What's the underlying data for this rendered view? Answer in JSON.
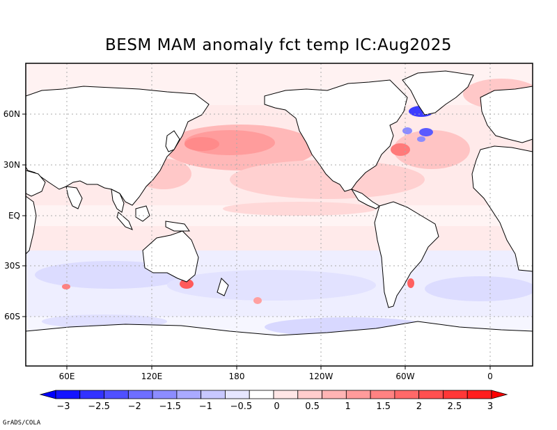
{
  "title": "BESM  MAM anomaly fct temp IC:Aug2025",
  "x_ticks": [
    "60E",
    "120E",
    "180",
    "120W",
    "60W",
    "0"
  ],
  "y_ticks": [
    "60N",
    "30N",
    "EQ",
    "30S",
    "60S"
  ],
  "colorbar": {
    "labels": [
      "−3",
      "−2.5",
      "−2",
      "−1.5",
      "−1",
      "−0.5",
      "0",
      "0.5",
      "1",
      "1.5",
      "2",
      "2.5",
      "3"
    ],
    "colors": [
      "#1414ff",
      "#3232ff",
      "#5050ff",
      "#6e6eff",
      "#8c8cff",
      "#aaaaff",
      "#c8c8ff",
      "#e6e6ff",
      "#ffffff",
      "#ffe6e6",
      "#ffcdcd",
      "#ffb4b4",
      "#ff9b9b",
      "#ff8282",
      "#ff6969",
      "#ff5050",
      "#ff3737",
      "#ff1e1e"
    ]
  },
  "credit": "GrADS/COLA",
  "colors": {
    "frame": "#000000",
    "grid": "#aaaaaa",
    "land": "#ffffff",
    "ocean_base": "#fff0f0"
  }
}
